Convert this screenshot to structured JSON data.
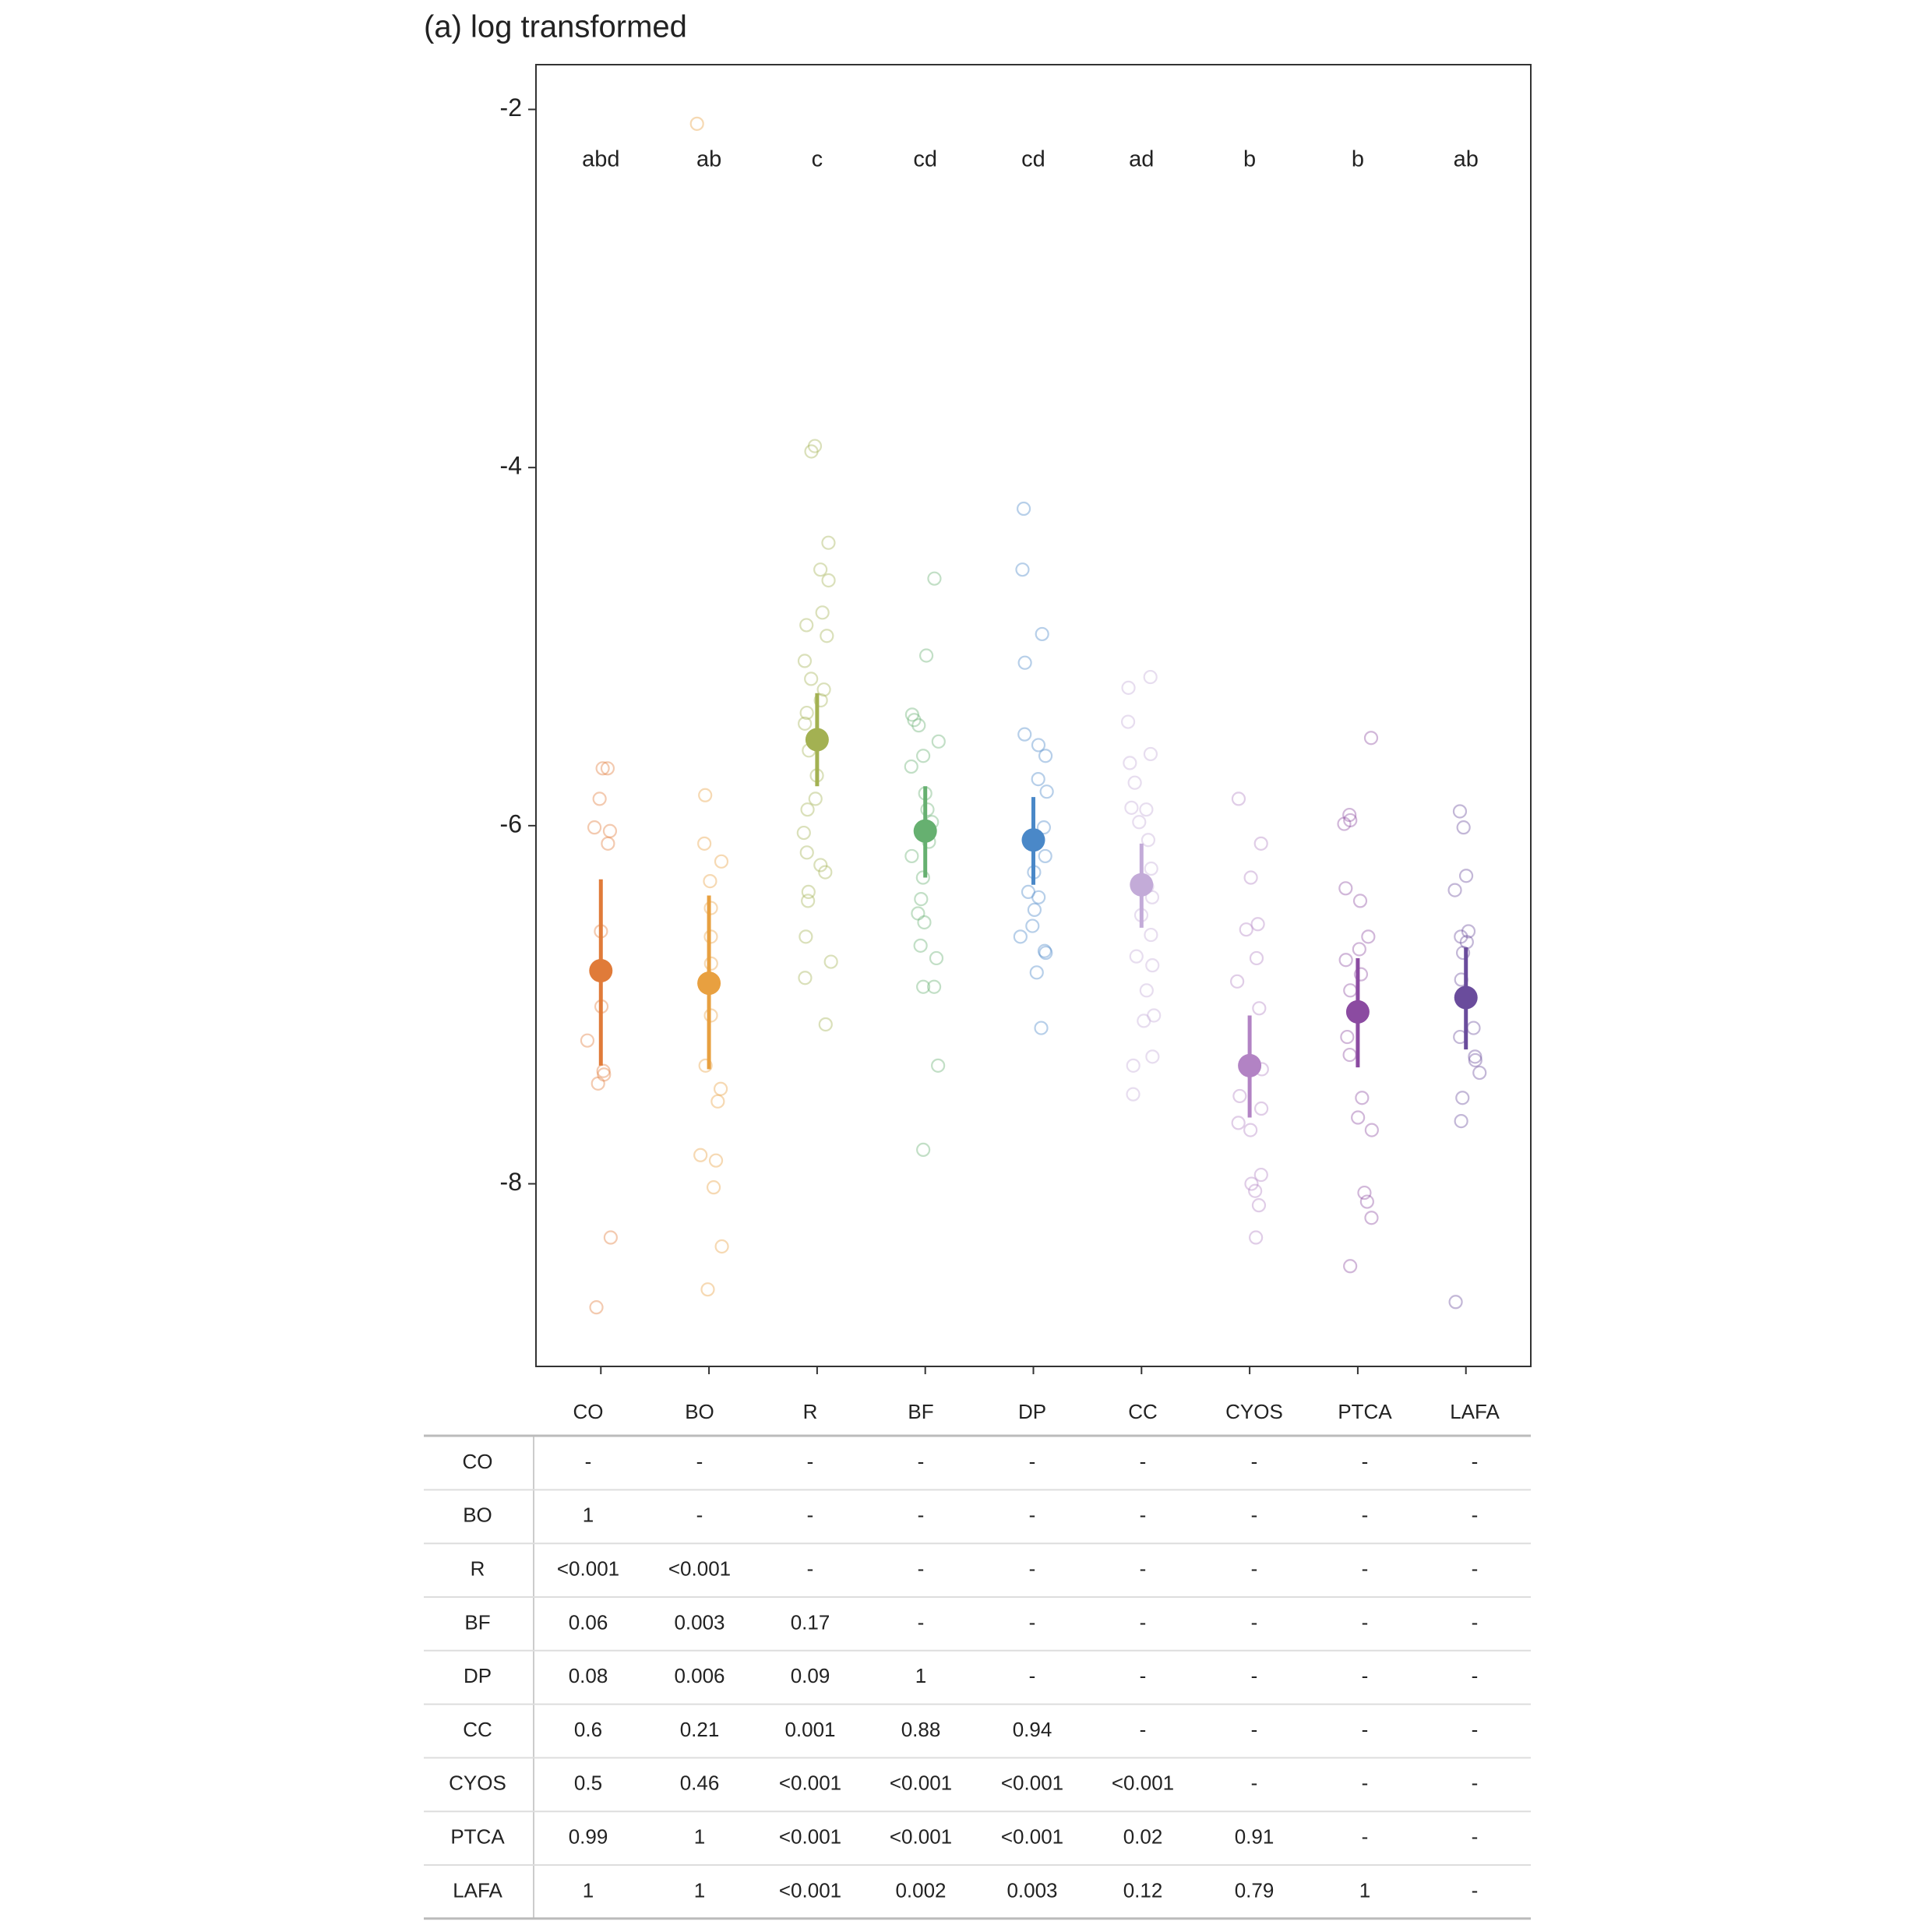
{
  "chart_data": {
    "type": "pointrange",
    "title": "(a) log transformed",
    "categories": [
      "CO",
      "BO",
      "R",
      "BF",
      "DP",
      "CC",
      "CYOS",
      "PTCA",
      "LAFA"
    ],
    "colors": [
      "#e07b39",
      "#e8a040",
      "#a3b152",
      "#66b070",
      "#4a88c8",
      "#c3abd8",
      "#b283c4",
      "#8b4ba1",
      "#6a4c9c"
    ],
    "letters": [
      "abd",
      "ab",
      "c",
      "cd",
      "cd",
      "ad",
      "b",
      "b",
      "ab"
    ],
    "means": [
      -6.81,
      -6.88,
      -5.52,
      -6.03,
      -6.08,
      -6.33,
      -7.34,
      -7.04,
      -6.96
    ],
    "lower": [
      -7.34,
      -7.36,
      -5.78,
      -6.29,
      -6.33,
      -6.57,
      -7.63,
      -7.35,
      -7.25
    ],
    "upper": [
      -6.3,
      -6.39,
      -5.26,
      -5.78,
      -5.84,
      -6.1,
      -7.06,
      -6.74,
      -6.68
    ],
    "points": [
      [
        -5.68,
        -5.68,
        -5.85,
        -6.01,
        -6.03,
        -6.1,
        -6.59,
        -6.81,
        -7.01,
        -7.2,
        -7.37,
        -7.39,
        -7.44,
        -8.3,
        -8.69
      ],
      [
        -2.08,
        -5.83,
        -6.1,
        -6.2,
        -6.31,
        -6.46,
        -6.62,
        -6.77,
        -7.06,
        -7.34,
        -7.47,
        -7.54,
        -7.84,
        -7.87,
        -8.02,
        -8.35,
        -8.59
      ],
      [
        -3.88,
        -3.91,
        -4.42,
        -4.57,
        -4.63,
        -4.81,
        -4.88,
        -4.94,
        -5.08,
        -5.18,
        -5.24,
        -5.3,
        -5.37,
        -5.43,
        -5.58,
        -5.72,
        -5.85,
        -5.91,
        -6.04,
        -6.15,
        -6.22,
        -6.26,
        -6.37,
        -6.42,
        -6.62,
        -6.76,
        -6.85,
        -7.11
      ],
      [
        -4.62,
        -5.05,
        -5.38,
        -5.41,
        -5.44,
        -5.53,
        -5.61,
        -5.67,
        -5.82,
        -5.91,
        -5.98,
        -6.09,
        -6.17,
        -6.29,
        -6.41,
        -6.49,
        -6.54,
        -6.67,
        -6.74,
        -6.9,
        -6.9,
        -7.34,
        -7.81
      ],
      [
        -4.23,
        -4.57,
        -4.93,
        -5.09,
        -5.49,
        -5.55,
        -5.61,
        -5.74,
        -5.81,
        -6.01,
        -6.06,
        -6.17,
        -6.26,
        -6.37,
        -6.4,
        -6.47,
        -6.56,
        -6.62,
        -6.7,
        -6.71,
        -6.82,
        -7.13
      ],
      [
        -5.17,
        -5.23,
        -5.42,
        -5.6,
        -5.65,
        -5.76,
        -5.9,
        -5.91,
        -5.98,
        -6.08,
        -6.24,
        -6.34,
        -6.4,
        -6.5,
        -6.61,
        -6.73,
        -6.78,
        -6.92,
        -7.06,
        -7.09,
        -7.29,
        -7.34,
        -7.5
      ],
      [
        -5.85,
        -6.1,
        -6.29,
        -6.55,
        -6.58,
        -6.74,
        -6.87,
        -7.02,
        -7.36,
        -7.51,
        -7.58,
        -7.66,
        -7.7,
        -7.95,
        -8.0,
        -8.04,
        -8.12,
        -8.3
      ],
      [
        -5.51,
        -5.94,
        -5.97,
        -5.99,
        -6.35,
        -6.42,
        -6.62,
        -6.69,
        -6.75,
        -6.83,
        -6.92,
        -7.06,
        -7.18,
        -7.28,
        -7.52,
        -7.63,
        -7.7,
        -8.05,
        -8.1,
        -8.19,
        -8.46
      ],
      [
        -5.92,
        -6.01,
        -6.28,
        -6.36,
        -6.59,
        -6.62,
        -6.65,
        -6.71,
        -6.86,
        -7.13,
        -7.18,
        -7.29,
        -7.31,
        -7.38,
        -7.52,
        -7.65,
        -8.66
      ]
    ],
    "ylim": [
      -9.02,
      -1.75
    ],
    "yticks": [
      -8,
      -6,
      -4,
      -2
    ],
    "grid": false
  },
  "table": {
    "rows": [
      {
        "label": "CO",
        "cells": [
          "-",
          "-",
          "-",
          "-",
          "-",
          "-",
          "-",
          "-",
          "-"
        ]
      },
      {
        "label": "BO",
        "cells": [
          1,
          "-",
          "-",
          "-",
          "-",
          "-",
          "-",
          "-",
          "-"
        ]
      },
      {
        "label": "R",
        "cells": [
          "<0.001",
          "<0.001",
          "-",
          "-",
          "-",
          "-",
          "-",
          "-",
          "-"
        ]
      },
      {
        "label": "BF",
        "cells": [
          0.06,
          0.003,
          0.17,
          "-",
          "-",
          "-",
          "-",
          "-",
          "-"
        ]
      },
      {
        "label": "DP",
        "cells": [
          0.08,
          0.006,
          0.09,
          1,
          "-",
          "-",
          "-",
          "-",
          "-"
        ]
      },
      {
        "label": "CC",
        "cells": [
          0.6,
          0.21,
          0.001,
          0.88,
          0.94,
          "-",
          "-",
          "-",
          "-"
        ]
      },
      {
        "label": "CYOS",
        "cells": [
          0.5,
          0.46,
          "<0.001",
          "<0.001",
          "<0.001",
          "<0.001",
          "-",
          "-",
          "-"
        ]
      },
      {
        "label": "PTCA",
        "cells": [
          0.99,
          1,
          "<0.001",
          "<0.001",
          "<0.001",
          0.02,
          0.91,
          "-",
          "-"
        ]
      },
      {
        "label": "LAFA",
        "cells": [
          1,
          1,
          "<0.001",
          0.002,
          0.003,
          0.12,
          0.79,
          1,
          "-"
        ]
      }
    ]
  }
}
